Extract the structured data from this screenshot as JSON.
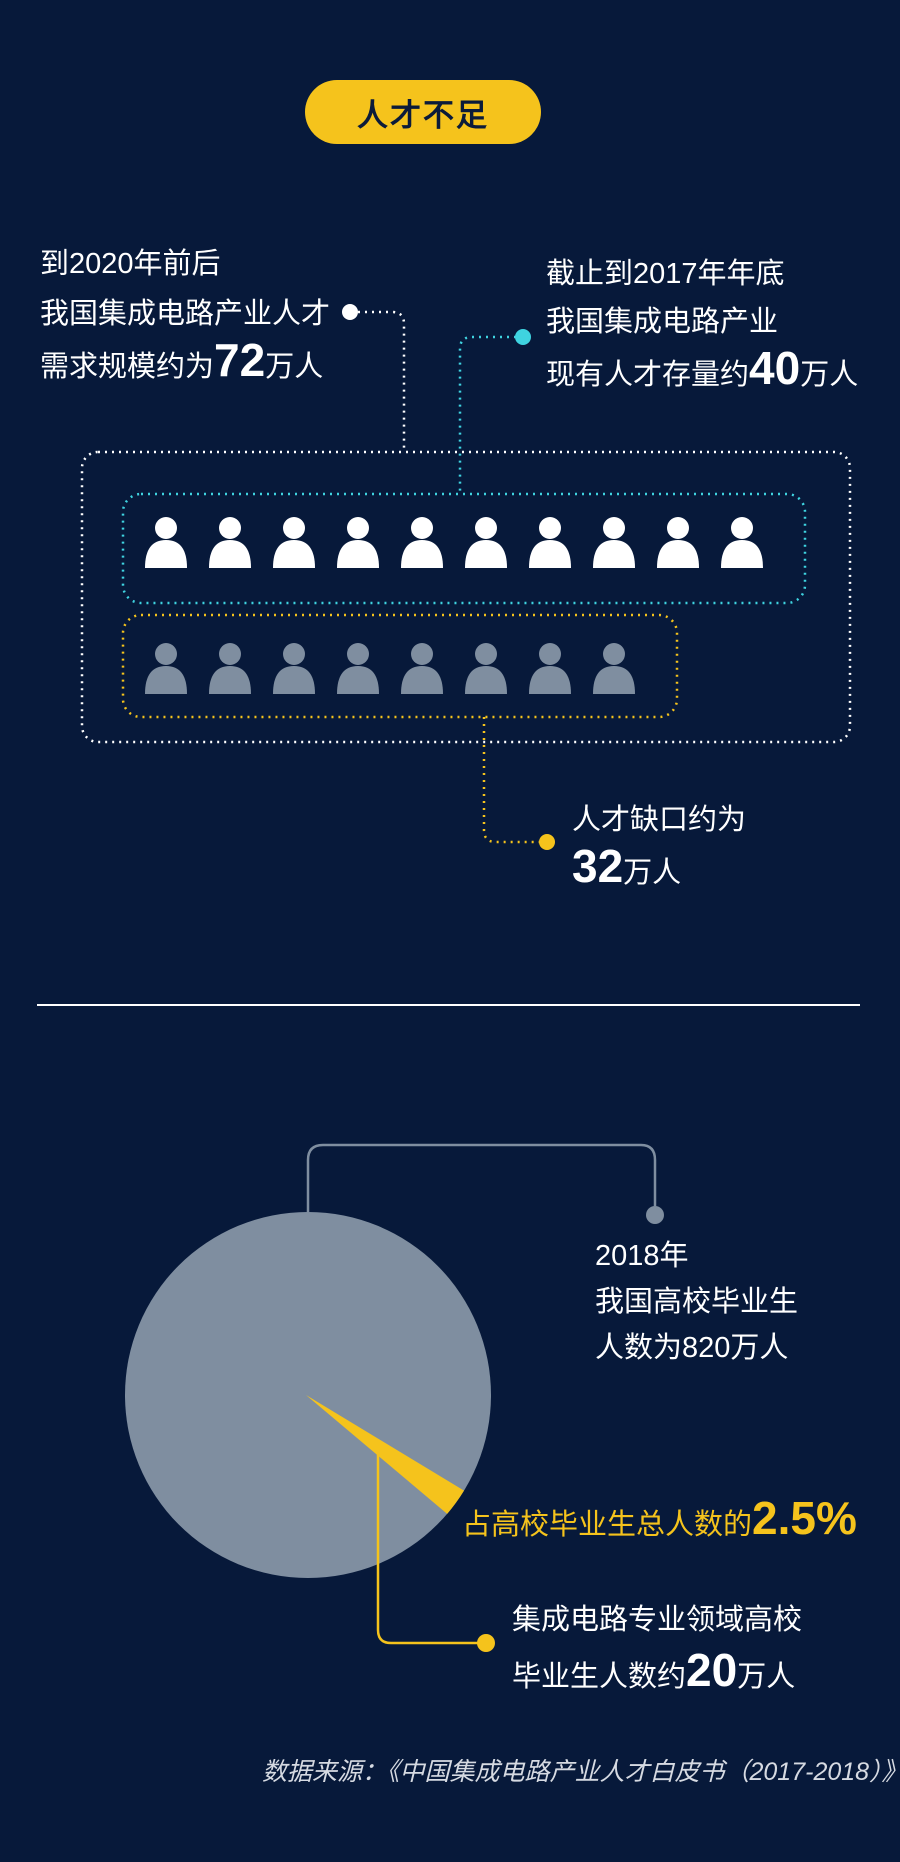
{
  "header": {
    "title": "人才不足"
  },
  "demand": {
    "line1": "到2020年前后",
    "line2": "我国集成电路产业人才",
    "line3_prefix": "需求规模约为",
    "value": "72",
    "unit": "万人"
  },
  "stock": {
    "line1": "截止到2017年年底",
    "line2": "我国集成电路产业",
    "line3_prefix": "现有人才存量约",
    "value": "40",
    "unit": "万人"
  },
  "gap": {
    "line1": "人才缺口约为",
    "value": "32",
    "unit": "万人"
  },
  "graduates": {
    "line1": "2018年",
    "line2": "我国高校毕业生",
    "line3": "人数为820万人"
  },
  "share": {
    "prefix": "占高校毕业生总人数的",
    "value": "2.5%"
  },
  "ic_grads": {
    "line1": "集成电路专业领域高校",
    "line2_prefix": "毕业生人数约",
    "value": "20",
    "unit": "万人"
  },
  "source": "数据来源：《中国集成电路产业人才白皮书（2017-2018）》",
  "colors": {
    "background": "#07193a",
    "accent_yellow": "#f5c31c",
    "accent_cyan": "#3fd3e0",
    "icon_white": "#ffffff",
    "icon_gray": "#7f8ea0",
    "pie_gray": "#7f8ea0"
  },
  "chart_data": [
    {
      "type": "icon-array",
      "series": [
        {
          "name": "",
          "count": 10,
          "color": "#ffffff"
        },
        {
          "name": "",
          "count": 8,
          "color": "#7f8ea0"
        }
      ]
    },
    {
      "type": "pie",
      "slices": [
        {
          "label": "",
          "value": 97.5,
          "color": "#7f8ea0"
        },
        {
          "label": "",
          "value": 2.5,
          "color": "#f5c31c"
        }
      ]
    }
  ]
}
